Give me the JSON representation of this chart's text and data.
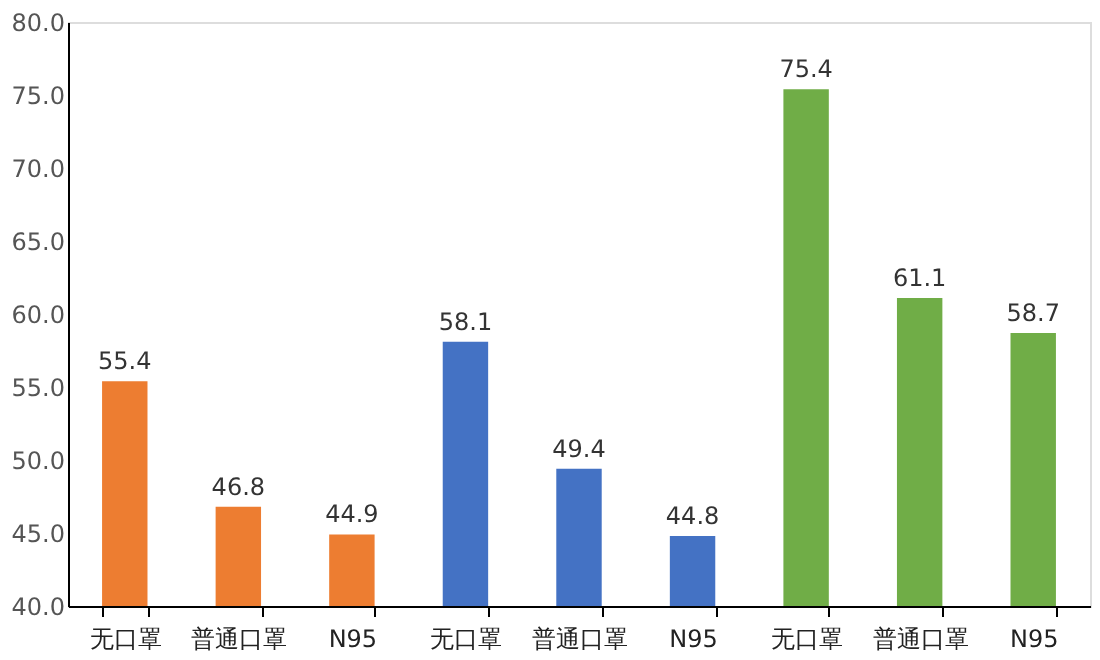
{
  "chart_data": {
    "type": "bar",
    "categories": [
      "无口罩",
      "普通口罩",
      "N95",
      "无口罩",
      "普通口罩",
      "N95",
      "无口罩",
      "普通口罩",
      "N95"
    ],
    "values": [
      55.4,
      46.8,
      44.9,
      58.1,
      49.4,
      44.8,
      75.4,
      61.1,
      58.7
    ],
    "colors": [
      "#ed7d31",
      "#ed7d31",
      "#ed7d31",
      "#4472c4",
      "#4472c4",
      "#4472c4",
      "#70ad47",
      "#70ad47",
      "#70ad47"
    ],
    "ylim": [
      40,
      80
    ],
    "yticks": [
      {
        "value": 40,
        "label": "40.0"
      },
      {
        "value": 45,
        "label": "45.0"
      },
      {
        "value": 50,
        "label": "50.0"
      },
      {
        "value": 55,
        "label": "55.0"
      },
      {
        "value": 60,
        "label": "60.0"
      },
      {
        "value": 65,
        "label": "65.0"
      },
      {
        "value": 70,
        "label": "70.0"
      },
      {
        "value": 75,
        "label": "75.0"
      },
      {
        "value": 80,
        "label": "80.0"
      }
    ],
    "data_labels": true,
    "grid": false
  }
}
